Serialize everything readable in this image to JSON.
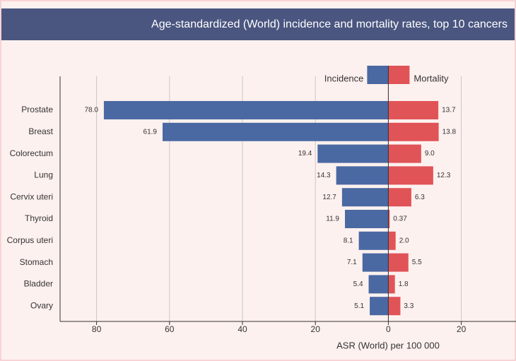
{
  "chart_data": {
    "type": "butterfly-bar",
    "title": "Age-standardized (World) incidence and mortality rates, top 10 cancers",
    "x_label": "ASR (World) per 100 000",
    "categories": [
      "Prostate",
      "Breast",
      "Colorectum",
      "Lung",
      "Cervix uteri",
      "Thyroid",
      "Corpus uteri",
      "Stomach",
      "Bladder",
      "Ovary"
    ],
    "series": [
      {
        "name": "Incidence",
        "color": "#4a69a3",
        "side": "left",
        "values": [
          78.0,
          61.9,
          19.4,
          14.3,
          12.7,
          11.9,
          8.1,
          7.1,
          5.4,
          5.1
        ],
        "value_labels": [
          "78.0",
          "61.9",
          "19.4",
          "14.3",
          "12.7",
          "11.9",
          "8.1",
          "7.1",
          "5.4",
          "5.1"
        ]
      },
      {
        "name": "Mortality",
        "color": "#e05457",
        "side": "right",
        "values": [
          13.7,
          13.8,
          9.0,
          12.3,
          6.3,
          0.37,
          2.0,
          5.5,
          1.8,
          3.3
        ],
        "value_labels": [
          "13.7",
          "13.8",
          "9.0",
          "12.3",
          "6.3",
          "0.37",
          "2.0",
          "5.5",
          "1.8",
          "3.3"
        ]
      }
    ],
    "xlim": [
      -90,
      35
    ],
    "xticks": [
      {
        "value": -80,
        "label": "80"
      },
      {
        "value": -60,
        "label": "60"
      },
      {
        "value": -40,
        "label": "40"
      },
      {
        "value": -20,
        "label": "20"
      },
      0,
      20
    ],
    "grid": true
  }
}
